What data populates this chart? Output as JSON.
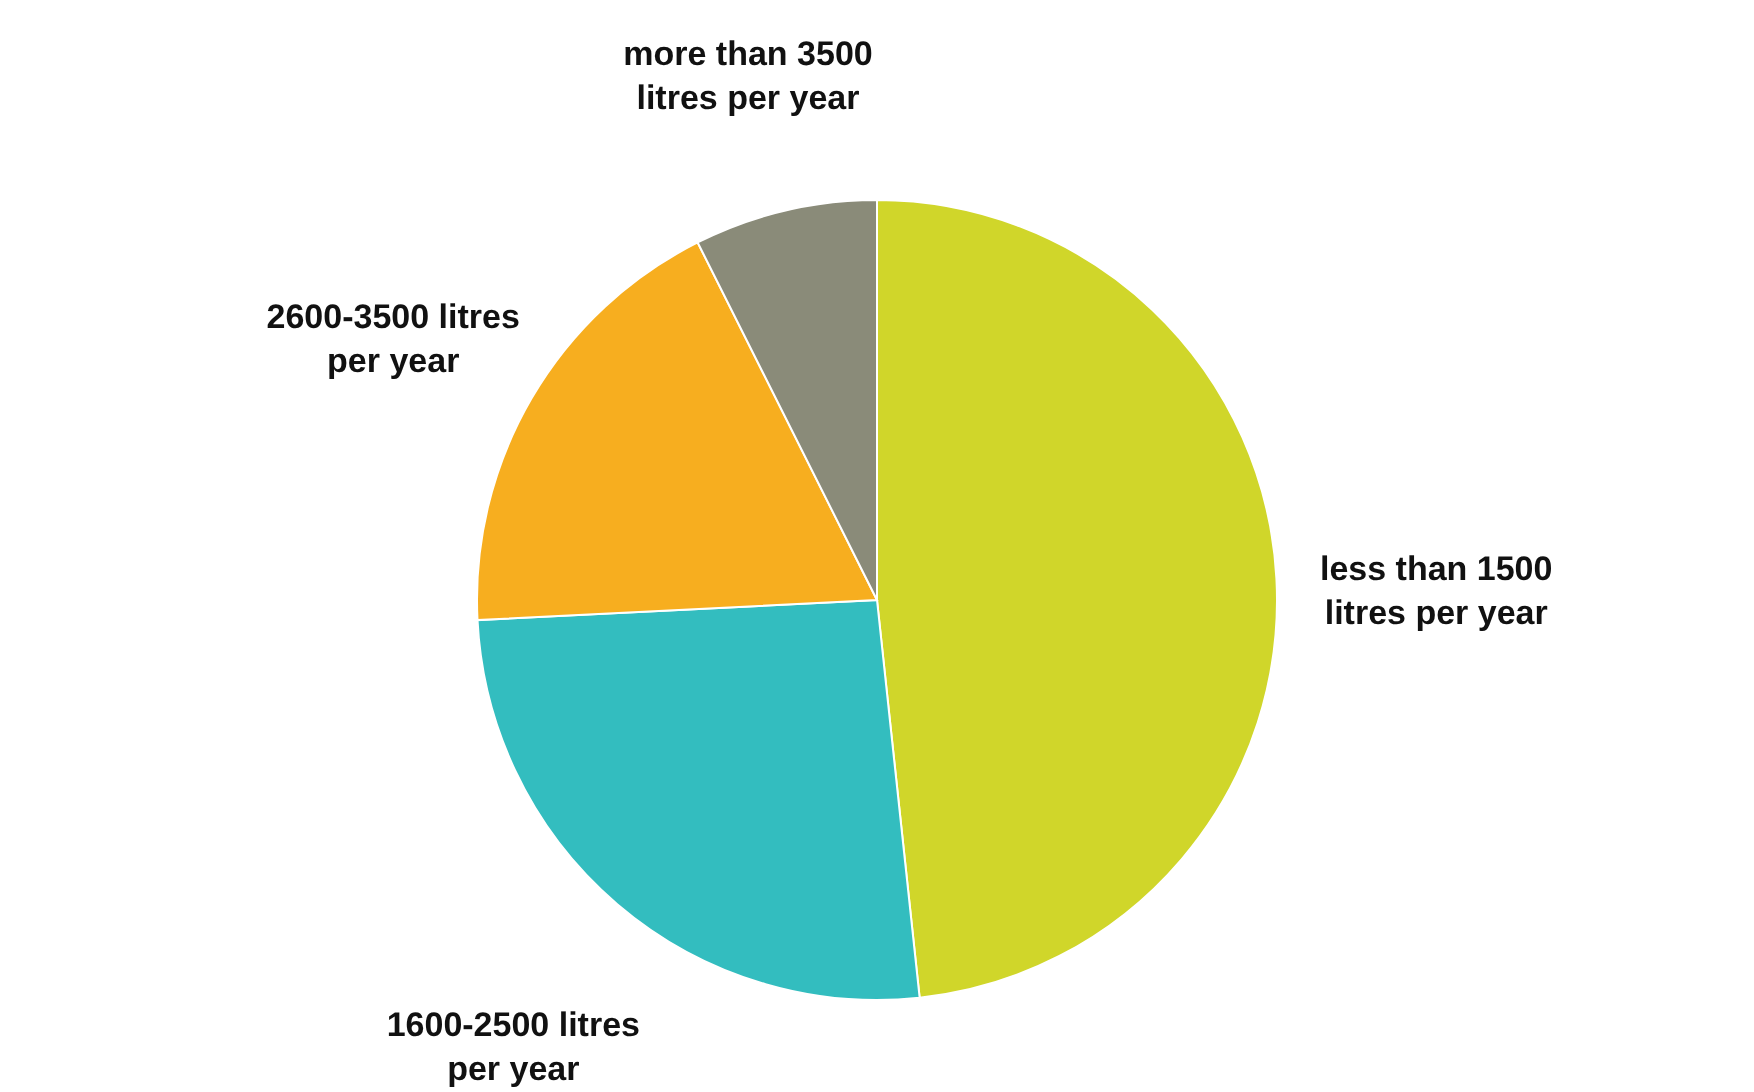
{
  "chart_data": {
    "type": "pie",
    "categories": [
      "less than 1500 litres per year",
      "1600-2500 litres per year",
      "2600-3500 litres per year",
      "more than 3500 litres per year"
    ],
    "values": [
      48.3,
      25.9,
      18.4,
      7.4
    ],
    "colors": [
      "#d0d62a",
      "#33bdbf",
      "#f7ae1f",
      "#8a8b79"
    ]
  }
}
